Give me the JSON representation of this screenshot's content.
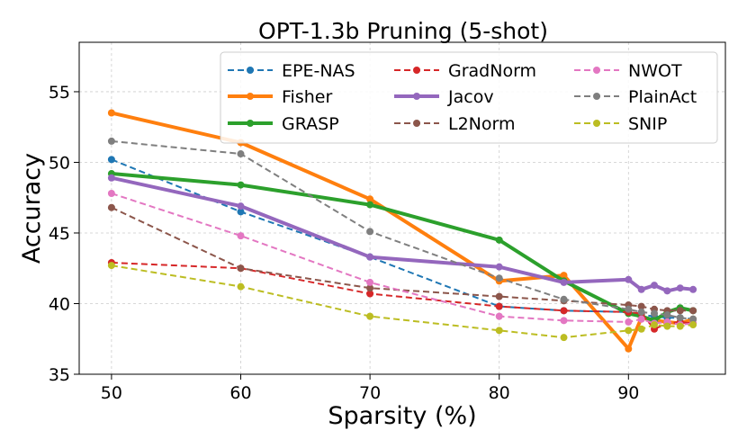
{
  "chart_data": {
    "type": "line",
    "title": "OPT-1.3b Pruning (5-shot)",
    "xlabel": "Sparsity (%)",
    "ylabel": "Accuracy",
    "xlim": [
      47.5,
      97.5
    ],
    "ylim": [
      35,
      58.5
    ],
    "xticks": [
      50,
      60,
      70,
      80,
      90
    ],
    "yticks": [
      35,
      40,
      45,
      50,
      55
    ],
    "grid": true,
    "legend_position": "top-right",
    "legend_columns": 3,
    "series": [
      {
        "name": "EPE-NAS",
        "color": "#1f77b4",
        "style": "dashed",
        "x": [
          50,
          60,
          70,
          80,
          85,
          90,
          91,
          92,
          93,
          94,
          95
        ],
        "y": [
          50.2,
          46.5,
          43.3,
          39.8,
          39.5,
          39.4,
          39.2,
          39.1,
          39.0,
          39.0,
          38.9
        ]
      },
      {
        "name": "Fisher",
        "color": "#ff7f0e",
        "style": "solid-thick",
        "x": [
          50,
          60,
          70,
          80,
          85,
          90,
          91,
          92,
          93,
          94,
          95
        ],
        "y": [
          53.5,
          51.4,
          47.4,
          41.6,
          42.0,
          36.8,
          39.0,
          38.8,
          38.7,
          38.6,
          38.9
        ]
      },
      {
        "name": "GRASP",
        "color": "#2ca02c",
        "style": "solid-thick",
        "x": [
          50,
          60,
          70,
          80,
          85,
          90,
          91,
          92,
          93,
          94,
          95
        ],
        "y": [
          49.2,
          48.4,
          47.0,
          44.5,
          41.6,
          39.3,
          39.1,
          38.8,
          39.4,
          39.7,
          39.5
        ]
      },
      {
        "name": "GradNorm",
        "color": "#d62728",
        "style": "dashed",
        "x": [
          50,
          60,
          70,
          80,
          85,
          90,
          91,
          92,
          93,
          94,
          95
        ],
        "y": [
          42.9,
          42.5,
          40.7,
          39.8,
          39.5,
          39.4,
          39.3,
          38.2,
          38.6,
          38.7,
          38.6
        ]
      },
      {
        "name": "Jacov",
        "color": "#9467bd",
        "style": "solid-thick",
        "x": [
          50,
          60,
          70,
          80,
          85,
          90,
          91,
          92,
          93,
          94,
          95
        ],
        "y": [
          48.9,
          46.9,
          43.3,
          42.6,
          41.5,
          41.7,
          41.0,
          41.3,
          40.9,
          41.1,
          41.0
        ]
      },
      {
        "name": "L2Norm",
        "color": "#8c564b",
        "style": "dashed",
        "x": [
          50,
          60,
          70,
          80,
          85,
          90,
          91,
          92,
          93,
          94,
          95
        ],
        "y": [
          46.8,
          42.5,
          41.1,
          40.5,
          40.2,
          39.9,
          39.8,
          39.6,
          39.5,
          39.5,
          39.5
        ]
      },
      {
        "name": "NWOT",
        "color": "#e377c2",
        "style": "dashed",
        "x": [
          50,
          60,
          70,
          80,
          85,
          90,
          91,
          92,
          93,
          94,
          95
        ],
        "y": [
          47.8,
          44.8,
          41.5,
          39.1,
          38.8,
          38.7,
          38.9,
          38.6,
          38.7,
          38.5,
          38.6
        ]
      },
      {
        "name": "PlainAct",
        "color": "#7f7f7f",
        "style": "dashed",
        "x": [
          50,
          60,
          70,
          80,
          85,
          90,
          91,
          92,
          93,
          94,
          95
        ],
        "y": [
          51.5,
          50.6,
          45.1,
          41.8,
          40.3,
          39.6,
          39.4,
          39.3,
          39.2,
          39.0,
          38.9
        ]
      },
      {
        "name": "SNIP",
        "color": "#bcbd22",
        "style": "dashed",
        "x": [
          50,
          60,
          70,
          80,
          85,
          90,
          91,
          92,
          93,
          94,
          95
        ],
        "y": [
          42.7,
          41.2,
          39.1,
          38.1,
          37.6,
          38.1,
          38.2,
          38.5,
          38.4,
          38.4,
          38.5
        ]
      }
    ]
  }
}
